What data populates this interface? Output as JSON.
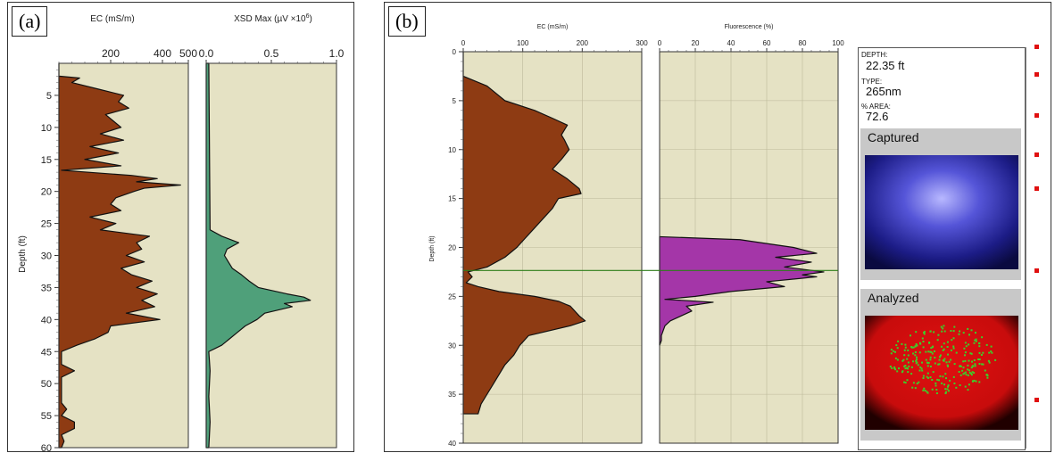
{
  "panel_a": {
    "tag": "(a)",
    "ec_title": "EC (mS/m)",
    "xsd_title": "XSD Max (µV ×10",
    "xsd_title_sup": "6",
    "xsd_title_end": ")",
    "depth_label": "Depth (ft)"
  },
  "panel_b": {
    "tag": "(b)",
    "ec_title": "EC (mS/m)",
    "fl_title": "Fluorescence (%)",
    "depth_label": "Depth (ft)",
    "side": {
      "depth_label": "DEPTH:",
      "depth_value": "22.35 ft",
      "type_label": "TYPE:",
      "type_value": "265nm",
      "area_label": "% AREA:",
      "area_value": "72.6",
      "captured_label": "Captured",
      "analyzed_label": "Analyzed"
    }
  },
  "colors": {
    "plot_bg": "#e5e2c4",
    "ec_fill": "#8e3b13",
    "xsd_fill": "#4fa07a",
    "fl_fill": "#a436a8",
    "marker_line": "#2e7d1a"
  },
  "chart_data": [
    {
      "type": "area",
      "title": "EC (mS/m)",
      "ylabel": "Depth (ft)",
      "xlim": [
        0,
        500
      ],
      "ylim": [
        0,
        60
      ],
      "x_ticks": [
        200,
        400,
        500
      ],
      "y_ticks": [
        5,
        10,
        15,
        20,
        25,
        30,
        35,
        40,
        45,
        50,
        55,
        60
      ],
      "series": [
        {
          "depth": [
            0,
            2,
            2.3,
            3,
            4,
            5,
            6,
            7,
            8,
            9,
            10,
            11,
            12,
            13,
            14,
            15,
            16,
            16.7,
            17.5,
            18,
            18.5,
            19,
            19.5,
            20,
            21,
            22,
            23,
            24,
            25,
            26,
            27,
            28,
            29,
            30,
            31,
            32,
            33,
            34,
            35,
            36,
            37,
            38,
            39,
            40,
            41,
            42,
            43,
            44,
            45,
            46,
            47,
            48,
            49,
            50,
            51,
            52,
            53,
            54,
            55,
            56,
            57,
            58,
            59,
            60
          ],
          "ec": [
            0,
            0,
            80,
            50,
            150,
            250,
            230,
            270,
            180,
            210,
            240,
            160,
            250,
            120,
            230,
            100,
            240,
            10,
            280,
            380,
            300,
            470,
            330,
            290,
            220,
            200,
            240,
            120,
            220,
            160,
            350,
            300,
            320,
            260,
            330,
            240,
            280,
            360,
            300,
            380,
            320,
            370,
            260,
            390,
            200,
            190,
            140,
            70,
            10,
            10,
            10,
            60,
            10,
            10,
            10,
            10,
            10,
            30,
            10,
            60,
            60,
            10,
            20,
            10
          ]
        }
      ]
    },
    {
      "type": "area",
      "title": "XSD Max (µV ×10⁶)",
      "xlim": [
        0,
        1.0
      ],
      "ylim": [
        0,
        60
      ],
      "x_ticks": [
        0.0,
        0.5,
        1.0
      ],
      "series": [
        {
          "depth": [
            0,
            26,
            27,
            28,
            29,
            30,
            31,
            32,
            33,
            34,
            35,
            36,
            36.5,
            37,
            37.5,
            38,
            39,
            40,
            41,
            42,
            43,
            44,
            44.5,
            45,
            48,
            52,
            56,
            60
          ],
          "xsd": [
            0.02,
            0.03,
            0.12,
            0.25,
            0.16,
            0.14,
            0.17,
            0.2,
            0.27,
            0.33,
            0.4,
            0.62,
            0.75,
            0.8,
            0.6,
            0.66,
            0.45,
            0.39,
            0.3,
            0.24,
            0.18,
            0.12,
            0.07,
            0.02,
            0.03,
            0.02,
            0.03,
            0.02
          ]
        }
      ]
    },
    {
      "type": "area",
      "title": "EC (mS/m)",
      "ylabel": "Depth (ft)",
      "xlim": [
        0,
        300
      ],
      "ylim": [
        0,
        40
      ],
      "x_ticks": [
        0,
        100,
        200,
        300
      ],
      "y_ticks": [
        0,
        5,
        10,
        15,
        20,
        25,
        30,
        35,
        40
      ],
      "series": [
        {
          "depth": [
            0,
            2.5,
            3.5,
            5,
            6,
            6.8,
            7.5,
            8.5,
            9,
            10,
            11,
            12,
            13,
            14,
            14.5,
            15,
            16,
            17,
            18,
            19,
            20,
            21,
            22,
            22.5,
            23,
            23.6,
            24,
            24.5,
            25,
            25.5,
            26,
            27,
            27.5,
            28,
            29,
            30,
            31,
            32,
            33,
            34,
            35,
            36,
            37
          ],
          "ec": [
            0,
            0,
            40,
            70,
            120,
            150,
            175,
            165,
            170,
            178,
            165,
            150,
            175,
            195,
            198,
            160,
            150,
            135,
            120,
            105,
            90,
            70,
            40,
            8,
            15,
            5,
            25,
            60,
            120,
            160,
            180,
            195,
            205,
            180,
            110,
            95,
            85,
            70,
            60,
            50,
            40,
            30,
            25
          ]
        }
      ]
    },
    {
      "type": "area",
      "title": "Fluorescence (%)",
      "xlim": [
        0,
        100
      ],
      "ylim": [
        0,
        40
      ],
      "x_ticks": [
        0,
        20,
        40,
        60,
        80,
        100
      ],
      "series": [
        {
          "depth": [
            18.9,
            19.2,
            20,
            20.6,
            21,
            21.5,
            22,
            22.5,
            22.8,
            23,
            23.5,
            24,
            24.5,
            25,
            25.3,
            25.6,
            26,
            26.5,
            27,
            27.5,
            28,
            28.5,
            29,
            29.5,
            30
          ],
          "fluorescence": [
            0,
            45,
            75,
            88,
            65,
            85,
            70,
            92,
            80,
            88,
            60,
            70,
            40,
            20,
            3,
            30,
            15,
            18,
            12,
            6,
            3,
            2,
            1,
            1,
            0
          ]
        }
      ]
    }
  ]
}
